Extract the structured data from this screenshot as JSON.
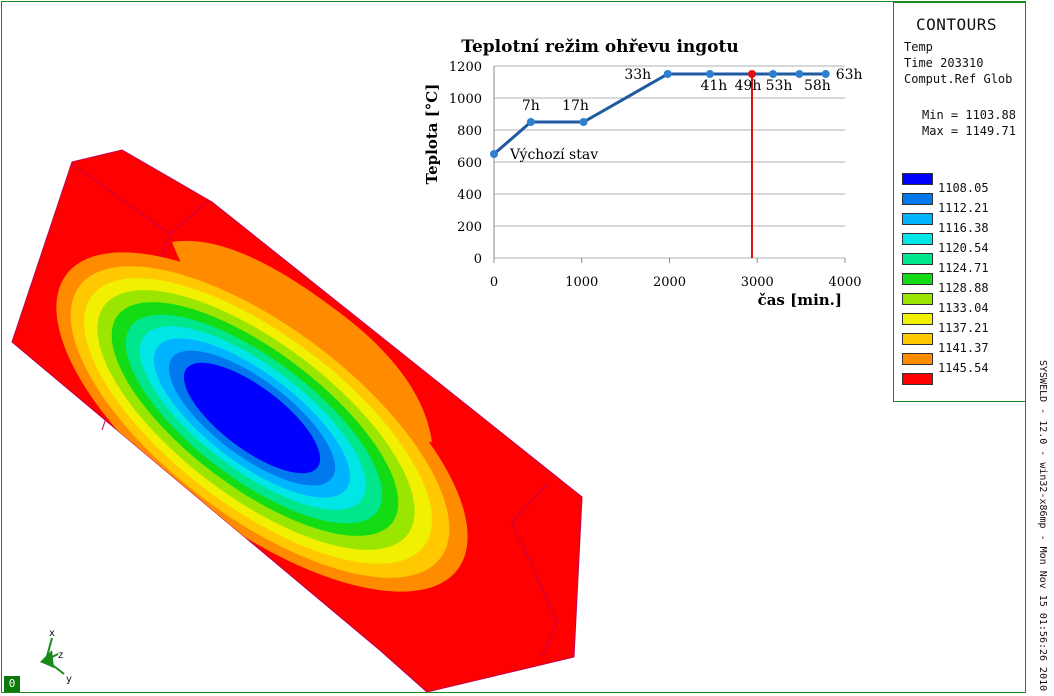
{
  "legend": {
    "title": "CONTOURS",
    "info": [
      "Temp",
      "Time 203310",
      "Comput.Ref Glob"
    ],
    "min_label": "Min = 1103.88",
    "max_label": "Max = 1149.71",
    "levels": [
      {
        "value": "1108.05",
        "color": "#0000ff"
      },
      {
        "value": "1112.21",
        "color": "#0078ee"
      },
      {
        "value": "1116.38",
        "color": "#00b4ff"
      },
      {
        "value": "1120.54",
        "color": "#00e6e6"
      },
      {
        "value": "1124.71",
        "color": "#00e68c"
      },
      {
        "value": "1128.88",
        "color": "#14dc14"
      },
      {
        "value": "1133.04",
        "color": "#9be600"
      },
      {
        "value": "1137.21",
        "color": "#f0f000"
      },
      {
        "value": "1141.37",
        "color": "#ffc800"
      },
      {
        "value": "1145.54",
        "color": "#ff8c00"
      },
      {
        "value": "",
        "color": "#ff0000"
      }
    ]
  },
  "footer": {
    "text": "SYSWELD - 12.0  -  win32-x86mp  -  Mon Nov 15 01:56:26 2010"
  },
  "viewport": {
    "badge": "0"
  },
  "axes_triad": {
    "x": "x",
    "y": "y",
    "z": "z"
  },
  "chart_data": {
    "type": "line",
    "title": "Teplotní režim ohřevu ingotu",
    "xlabel": "čas [min.]",
    "ylabel": "Teplota [°C]",
    "xlim": [
      0,
      4000
    ],
    "ylim": [
      0,
      1200
    ],
    "xticks": [
      "0",
      "1000",
      "2000",
      "3000",
      "4000"
    ],
    "yticks": [
      "0",
      "200",
      "400",
      "600",
      "800",
      "1000",
      "1200"
    ],
    "grid": true,
    "points": [
      {
        "x": 0,
        "y": 650,
        "label": "Výchozí stav"
      },
      {
        "x": 420,
        "y": 850,
        "label": "7h"
      },
      {
        "x": 1020,
        "y": 850,
        "label": "17h"
      },
      {
        "x": 1980,
        "y": 1150,
        "label": "33h"
      },
      {
        "x": 2460,
        "y": 1150,
        "label": "41h"
      },
      {
        "x": 2940,
        "y": 1150,
        "label": "49h"
      },
      {
        "x": 3180,
        "y": 1150,
        "label": "53h"
      },
      {
        "x": 3480,
        "y": 1150,
        "label": "58h"
      },
      {
        "x": 3780,
        "y": 1150,
        "label": "63h"
      }
    ],
    "current_x": 2940,
    "line_color": "#1f5aa0",
    "marker_color": "#2e7fd0",
    "current_color": "#e01010"
  }
}
